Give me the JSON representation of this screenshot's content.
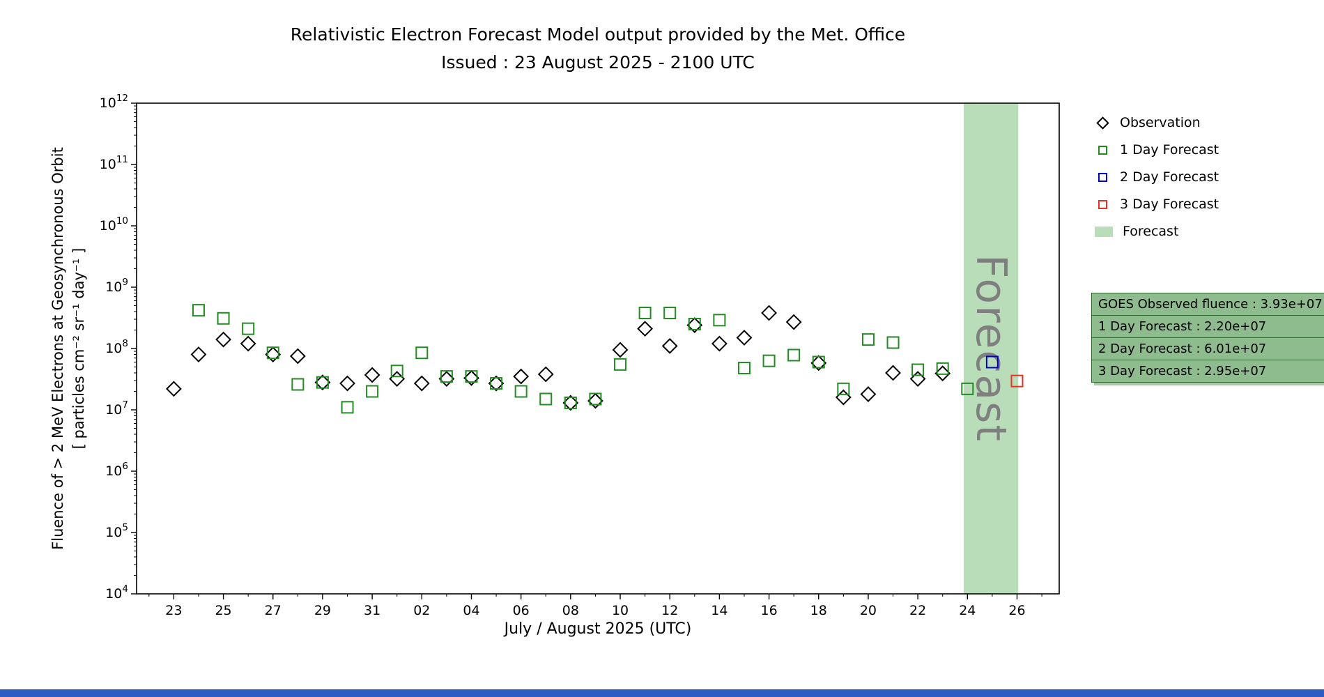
{
  "page": {
    "window_title": "Relativistic Electron Forecast Model output"
  },
  "legend": {
    "items": [
      {
        "label": "Observation",
        "marker": "diamond",
        "color": "#000000"
      },
      {
        "label": "1 Day Forecast",
        "marker": "square",
        "color": "#228B22"
      },
      {
        "label": "2 Day Forecast",
        "marker": "square",
        "color": "#0000CD"
      },
      {
        "label": "3 Day Forecast",
        "marker": "square",
        "color": "#E93323"
      },
      {
        "label": "Forecast",
        "marker": "patch",
        "color": "#b9dcb9"
      }
    ]
  },
  "info_box": {
    "bg_color": "#8FBC8F",
    "border_color": "#2f6b2f",
    "lines": [
      "GOES Observed fluence : 3.93e+07",
      "1 Day Forecast : 2.20e+07",
      "2 Day Forecast : 6.01e+07",
      "3 Day Forecast : 2.95e+07"
    ]
  },
  "chart_data": {
    "type": "scatter",
    "title": "Relativistic Electron Forecast Model output provided by the Met. Office",
    "subtitle": "Issued : 23 August 2025 - 2100 UTC",
    "xlabel": "July / August 2025 (UTC)",
    "ylabel_line1": "Fluence of > 2 MeV Electrons at Geosynchronous Orbit",
    "ylabel_line2": "[ particles cm⁻² sr⁻¹ day⁻¹ ]",
    "y_axis": {
      "scale": "log",
      "min_exp": 4,
      "max_exp": 12
    },
    "x_range": [
      -1.5,
      35.7
    ],
    "x_day_origin": "2025-07-23",
    "x_ticks": [
      {
        "day": 0,
        "label": "23"
      },
      {
        "day": 2,
        "label": "25"
      },
      {
        "day": 4,
        "label": "27"
      },
      {
        "day": 6,
        "label": "29"
      },
      {
        "day": 8,
        "label": "31"
      },
      {
        "day": 10,
        "label": "02"
      },
      {
        "day": 12,
        "label": "04"
      },
      {
        "day": 14,
        "label": "06"
      },
      {
        "day": 16,
        "label": "08"
      },
      {
        "day": 18,
        "label": "10"
      },
      {
        "day": 20,
        "label": "12"
      },
      {
        "day": 22,
        "label": "14"
      },
      {
        "day": 24,
        "label": "16"
      },
      {
        "day": 26,
        "label": "18"
      },
      {
        "day": 28,
        "label": "20"
      },
      {
        "day": 30,
        "label": "22"
      },
      {
        "day": 32,
        "label": "24"
      },
      {
        "day": 34,
        "label": "26"
      }
    ],
    "forecast_band": {
      "start": 31.85,
      "end": 34.05,
      "color": "#b9dcb9",
      "label": "Forecast",
      "label_color": "#7f7f7f"
    },
    "series": [
      {
        "name": "Observation",
        "marker": "diamond",
        "color": "#000000",
        "points": [
          [
            0,
            22000000.0
          ],
          [
            1,
            80000000.0
          ],
          [
            2,
            140000000.0
          ],
          [
            3,
            120000000.0
          ],
          [
            4,
            80000000.0
          ],
          [
            5,
            75000000.0
          ],
          [
            6,
            28000000.0
          ],
          [
            7,
            27000000.0
          ],
          [
            8,
            37000000.0
          ],
          [
            9,
            32000000.0
          ],
          [
            10,
            27000000.0
          ],
          [
            11,
            32000000.0
          ],
          [
            12,
            33000000.0
          ],
          [
            13,
            27000000.0
          ],
          [
            14,
            35000000.0
          ],
          [
            15,
            38000000.0
          ],
          [
            16,
            13000000.0
          ],
          [
            17,
            14000000.0
          ],
          [
            18,
            95000000.0
          ],
          [
            19,
            210000000.0
          ],
          [
            20,
            110000000.0
          ],
          [
            21,
            240000000.0
          ],
          [
            22,
            120000000.0
          ],
          [
            23,
            150000000.0
          ],
          [
            24,
            380000000.0
          ],
          [
            25,
            270000000.0
          ],
          [
            26,
            58000000.0
          ],
          [
            27,
            16000000.0
          ],
          [
            28,
            18000000.0
          ],
          [
            29,
            40000000.0
          ],
          [
            30,
            32000000.0
          ],
          [
            31,
            39300000.0
          ]
        ]
      },
      {
        "name": "1 Day Forecast",
        "marker": "square",
        "color": "#228B22",
        "points": [
          [
            1,
            420000000.0
          ],
          [
            2,
            310000000.0
          ],
          [
            3,
            210000000.0
          ],
          [
            4,
            85000000.0
          ],
          [
            5,
            26000000.0
          ],
          [
            6,
            28000000.0
          ],
          [
            7,
            11000000.0
          ],
          [
            8,
            20000000.0
          ],
          [
            9,
            43000000.0
          ],
          [
            10,
            85000000.0
          ],
          [
            11,
            35000000.0
          ],
          [
            12,
            35000000.0
          ],
          [
            13,
            27000000.0
          ],
          [
            14,
            20000000.0
          ],
          [
            15,
            15000000.0
          ],
          [
            16,
            13000000.0
          ],
          [
            17,
            15000000.0
          ],
          [
            18,
            55000000.0
          ],
          [
            19,
            380000000.0
          ],
          [
            20,
            380000000.0
          ],
          [
            21,
            250000000.0
          ],
          [
            22,
            290000000.0
          ],
          [
            23,
            48000000.0
          ],
          [
            24,
            63000000.0
          ],
          [
            25,
            78000000.0
          ],
          [
            26,
            60000000.0
          ],
          [
            27,
            22000000.0
          ],
          [
            28,
            140000000.0
          ],
          [
            29,
            125000000.0
          ],
          [
            30,
            45000000.0
          ],
          [
            31,
            47000000.0
          ],
          [
            32,
            22000000.0
          ]
        ]
      },
      {
        "name": "2 Day Forecast",
        "marker": "square",
        "color": "#0000CD",
        "points": [
          [
            33,
            60100000.0
          ]
        ]
      },
      {
        "name": "3 Day Forecast",
        "marker": "square",
        "color": "#E93323",
        "points": [
          [
            34,
            29500000.0
          ]
        ]
      }
    ]
  },
  "bottom_bar_color": "#2e5cc5"
}
